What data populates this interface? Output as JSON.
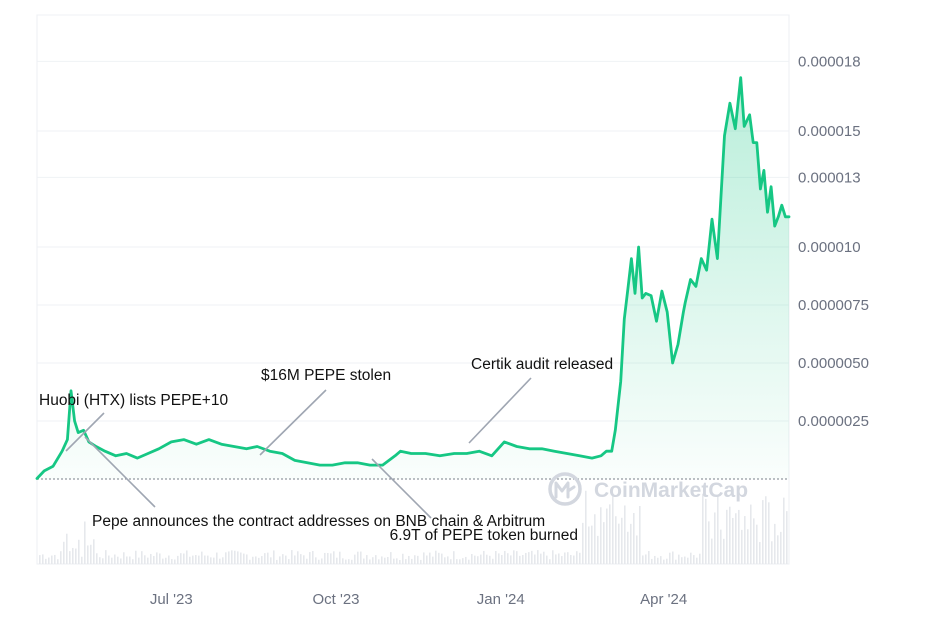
{
  "chart_data": {
    "type": "area",
    "title": "",
    "xlabel": "",
    "ylabel": "",
    "x_ticks": [
      "Jul '23",
      "Oct '23",
      "Jan '24",
      "Apr '24"
    ],
    "y_ticks": [
      "0.0000025",
      "0.0000050",
      "0.0000075",
      "0.000010",
      "0.000013",
      "0.000015",
      "0.000018"
    ],
    "ylim": [
      0,
      2.05e-05
    ],
    "xlim": [
      "2023-04-17",
      "2024-06-10"
    ],
    "reference_line": 0.0,
    "grid": true,
    "legend": "none",
    "colors": {
      "line": "#16c784",
      "fill": "#16c784",
      "volume": "#e6e8ec",
      "grid": "#eff2f5",
      "axis_text": "#6b7180"
    },
    "series": [
      {
        "x": [
          "2023-04-17",
          "2023-04-21",
          "2023-04-26",
          "2023-05-01",
          "2023-05-04",
          "2023-05-06",
          "2023-05-08",
          "2023-05-10",
          "2023-05-13",
          "2023-05-16",
          "2023-05-20",
          "2023-05-25",
          "2023-05-31",
          "2023-06-06",
          "2023-06-12",
          "2023-06-18",
          "2023-06-24",
          "2023-07-01",
          "2023-07-08",
          "2023-07-15",
          "2023-07-22",
          "2023-07-29",
          "2023-08-05",
          "2023-08-12",
          "2023-08-18",
          "2023-08-25",
          "2023-09-01",
          "2023-09-08",
          "2023-09-15",
          "2023-09-22",
          "2023-09-29",
          "2023-10-06",
          "2023-10-13",
          "2023-10-20",
          "2023-10-27",
          "2023-11-03",
          "2023-11-06",
          "2023-11-12",
          "2023-11-20",
          "2023-11-28",
          "2023-12-06",
          "2023-12-13",
          "2023-12-20",
          "2023-12-27",
          "2024-01-03",
          "2024-01-10",
          "2024-01-17",
          "2024-01-24",
          "2024-01-31",
          "2024-02-07",
          "2024-02-14",
          "2024-02-21",
          "2024-02-26",
          "2024-02-29",
          "2024-03-03",
          "2024-03-05",
          "2024-03-08",
          "2024-03-10",
          "2024-03-12",
          "2024-03-14",
          "2024-03-16",
          "2024-03-18",
          "2024-03-20",
          "2024-03-22",
          "2024-03-25",
          "2024-03-28",
          "2024-03-31",
          "2024-04-03",
          "2024-04-06",
          "2024-04-09",
          "2024-04-12",
          "2024-04-13",
          "2024-04-16",
          "2024-04-19",
          "2024-04-22",
          "2024-04-25",
          "2024-04-28",
          "2024-05-01",
          "2024-05-03",
          "2024-05-05",
          "2024-05-08",
          "2024-05-11",
          "2024-05-14",
          "2024-05-16",
          "2024-05-19",
          "2024-05-21",
          "2024-05-23",
          "2024-05-25",
          "2024-05-27",
          "2024-05-29",
          "2024-05-31",
          "2024-06-02",
          "2024-06-04",
          "2024-06-06",
          "2024-06-08",
          "2024-06-10"
        ],
        "values": [
          2e-08,
          3.5e-07,
          5.5e-07,
          1.2e-06,
          1.7e-06,
          3.8e-06,
          2.5e-06,
          2e-06,
          2.1e-06,
          1.6e-06,
          1.4e-06,
          1.2e-06,
          1e-06,
          1.1e-06,
          9e-07,
          1.1e-06,
          1.3e-06,
          1.6e-06,
          1.7e-06,
          1.5e-06,
          1.7e-06,
          1.5e-06,
          1.4e-06,
          1.3e-06,
          1.4e-06,
          1.2e-06,
          1.1e-06,
          8e-07,
          7e-07,
          6e-07,
          6e-07,
          7e-07,
          7e-07,
          6e-07,
          6e-07,
          1e-06,
          1.2e-06,
          1.1e-06,
          1.1e-06,
          1e-06,
          1.1e-06,
          1.1e-06,
          1.2e-06,
          1e-06,
          1.6e-06,
          1.4e-06,
          1.3e-06,
          1.3e-06,
          1.2e-06,
          1.1e-06,
          1e-06,
          9e-07,
          1e-06,
          1.2e-06,
          1.2e-06,
          2.1e-06,
          4.2e-06,
          6.9e-06,
          8.2e-06,
          9.5e-06,
          8e-06,
          1e-05,
          7.8e-06,
          8e-06,
          7.9e-06,
          6.8e-06,
          8.1e-06,
          7.2e-06,
          5e-06,
          5.8e-06,
          7.2e-06,
          7.6e-06,
          8.6e-06,
          8.3e-06,
          9.5e-06,
          9e-06,
          1.12e-05,
          9.5e-06,
          1.22e-05,
          1.48e-05,
          1.62e-05,
          1.51e-05,
          1.73e-05,
          1.52e-05,
          1.57e-05,
          1.45e-05,
          1.45e-05,
          1.25e-05,
          1.33e-05,
          1.15e-05,
          1.26e-05,
          1.09e-05,
          1.13e-05,
          1.18e-05,
          1.13e-05,
          1.13e-05
        ]
      }
    ],
    "annotations": [
      {
        "text": "Huobi (HTX) lists PEPE+10",
        "date": "2023-05-06"
      },
      {
        "text": "$16M PEPE stolen",
        "date": "2023-08-25"
      },
      {
        "text": "Certik audit released",
        "date": "2024-01-03"
      },
      {
        "text": "Pepe announces the contract addresses on BNB chain & Arbitrum",
        "date": "2023-05-10"
      },
      {
        "text": "6.9T of PEPE token burned",
        "date": "2023-11-03"
      }
    ],
    "watermark": "CoinMarketCap"
  }
}
